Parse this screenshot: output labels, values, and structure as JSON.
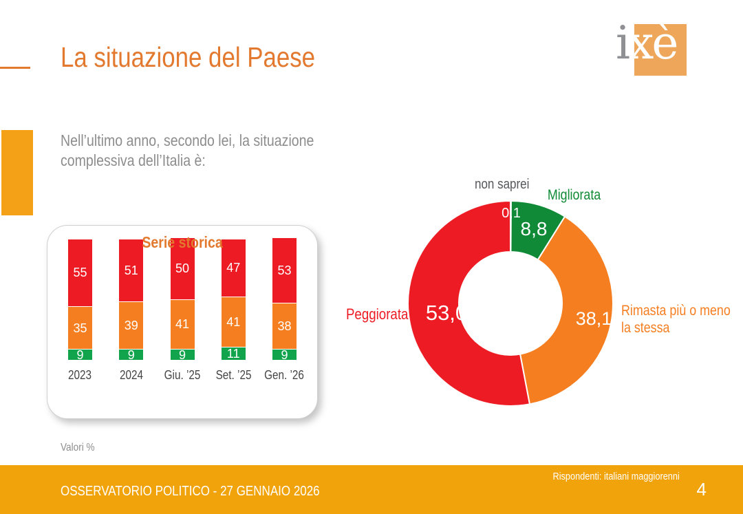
{
  "slide": {
    "title": "La situazione del Paese",
    "subtitle_lines": [
      "Nell’ultimo anno, secondo lei, la situazione",
      "complessiva dell’Italia è:"
    ],
    "valori_note": "Valori %",
    "footer_left": "OSSERVATORIO POLITICO - 27 GENNAIO 2026",
    "footer_right": "Rispondenti: italiani maggiorenni",
    "page_number": "4"
  },
  "logo": {
    "gray_part": "i",
    "orange_part": "xè"
  },
  "colors": {
    "accent_orange": "#E2792E",
    "chart_orange": "#F57E20",
    "chart_red": "#ED1C24",
    "bar_green": "#12A44C",
    "donut_green": "#108A36",
    "footer_orange": "#F1A30B",
    "side_block_orange": "#F5A117",
    "logo_orange": "#EDA65A",
    "gray_text": "#8D8D8D",
    "dark_gray_text": "#56575B"
  },
  "chart_data": [
    {
      "type": "bar",
      "title": "Serie storica",
      "stacked": true,
      "categories": [
        "2023",
        "2024",
        "Giu. ’25",
        "Set. ’25",
        "Gen. ’26"
      ],
      "series": [
        {
          "name": "Peggiorata",
          "color": "#ED1C24",
          "values": [
            55,
            51,
            50,
            47,
            53
          ]
        },
        {
          "name": "Rimasta più o meno la stessa",
          "color": "#F57E20",
          "values": [
            35,
            39,
            41,
            41,
            38
          ]
        },
        {
          "name": "Migliorata",
          "color": "#12A44C",
          "values": [
            9,
            9,
            9,
            11,
            9
          ]
        }
      ],
      "value_labels": true,
      "ylim": [
        0,
        100
      ],
      "grid": false,
      "note": "Valori %"
    },
    {
      "type": "pie",
      "subtype": "donut",
      "start_angle_deg": 0,
      "direction": "clockwise",
      "inner_radius_ratio": 0.5,
      "slices": [
        {
          "label": "non saprei",
          "value": 0.1,
          "display": "0,1",
          "color": "#9B9B9B"
        },
        {
          "label": "Migliorata",
          "value": 8.8,
          "display": "8,8",
          "color": "#108A36"
        },
        {
          "label": "Rimasta più o meno la stessa",
          "value": 38.1,
          "display": "38,1",
          "color": "#F57E20"
        },
        {
          "label": "Peggiorata",
          "value": 53.0,
          "display": "53,0",
          "color": "#ED1C24"
        }
      ]
    }
  ]
}
